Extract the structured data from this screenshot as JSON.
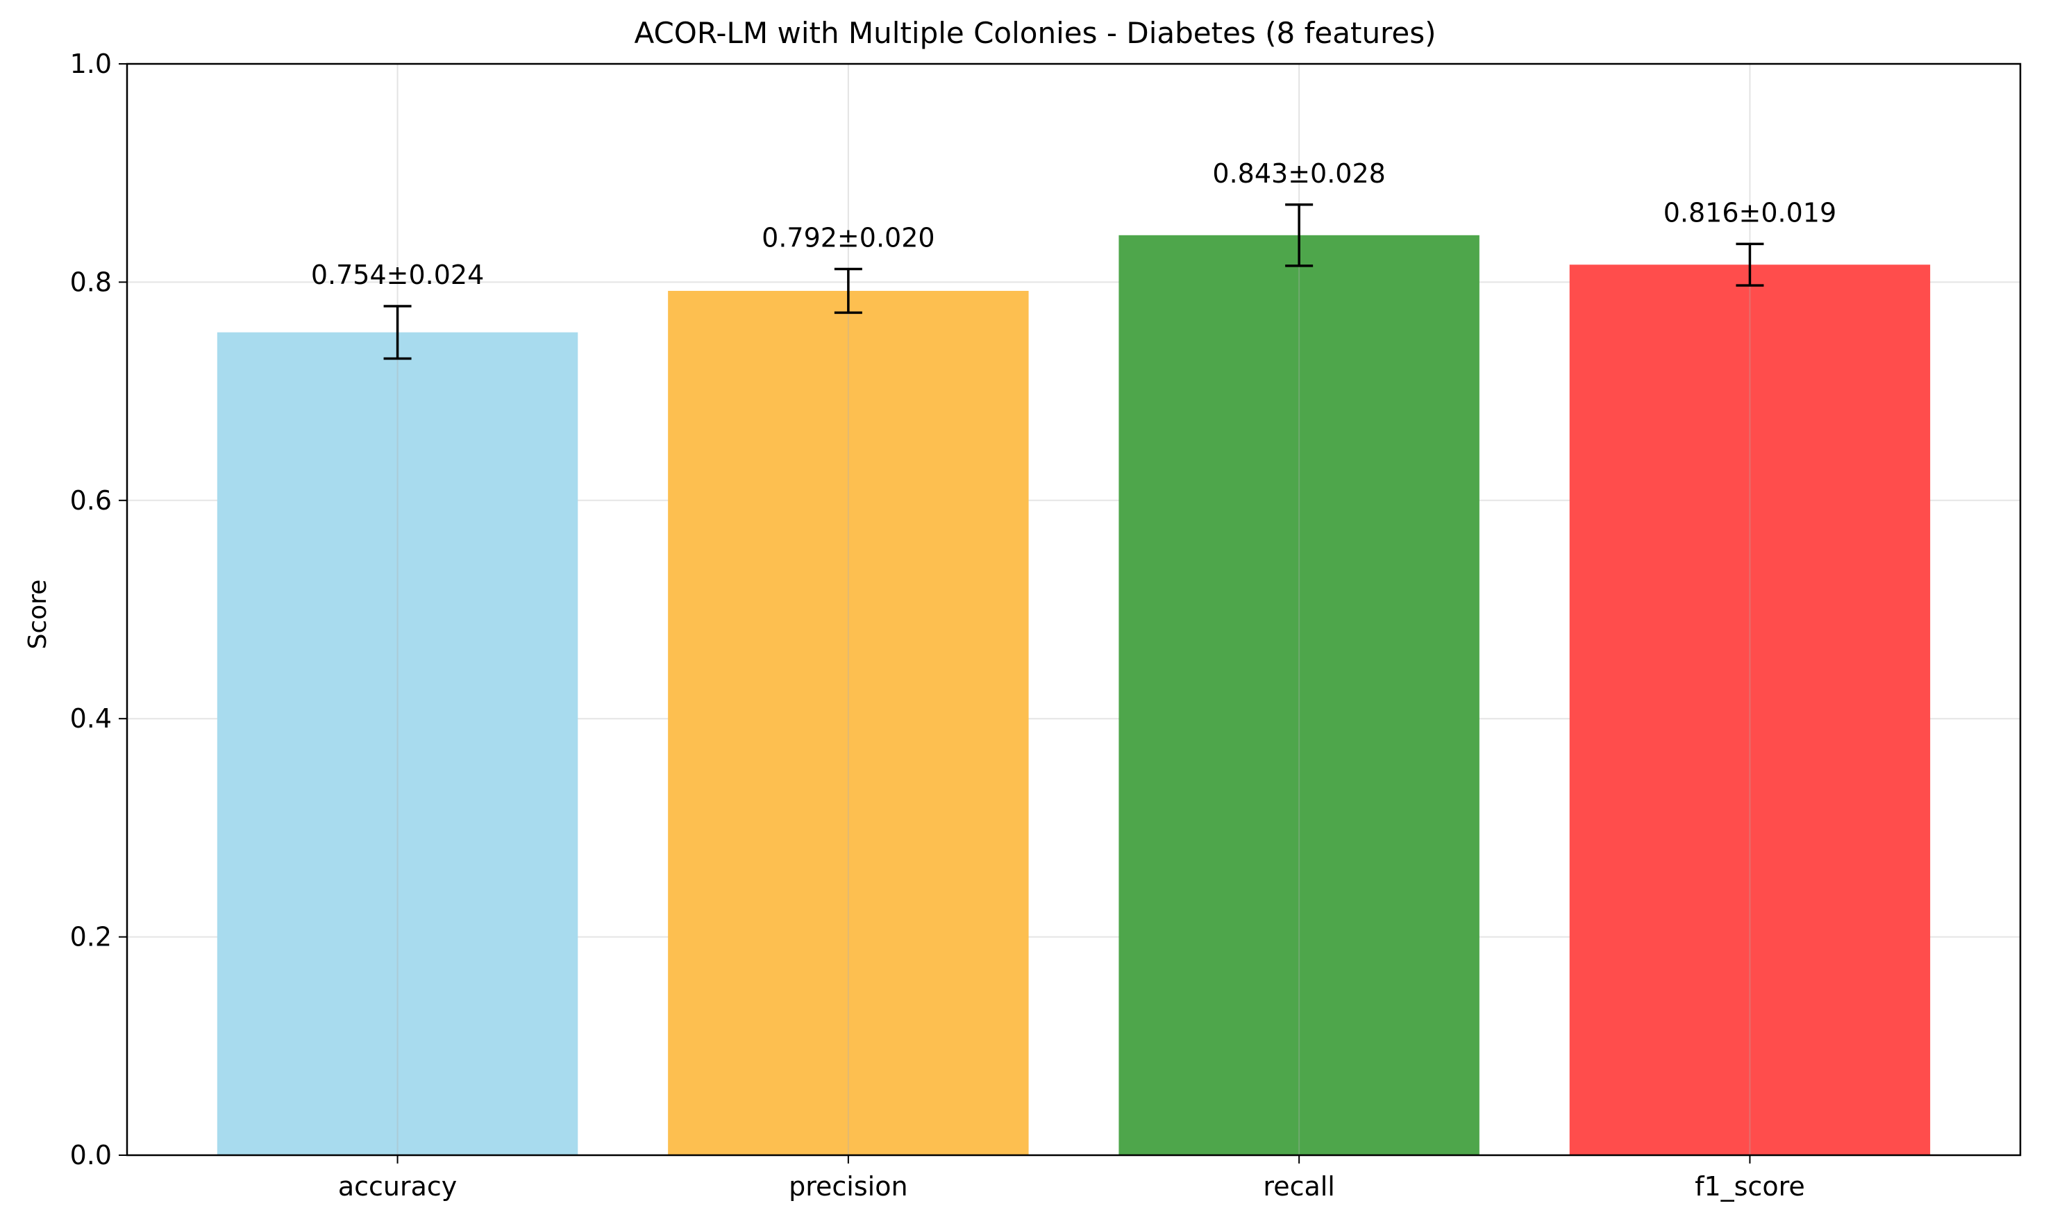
{
  "chart_data": {
    "type": "bar",
    "title": "ACOR-LM with Multiple Colonies - Diabetes (8 features)",
    "xlabel": "",
    "ylabel": "Score",
    "ylim": [
      0,
      1.0
    ],
    "yticks": [
      "0.0",
      "0.2",
      "0.4",
      "0.6",
      "0.8",
      "1.0"
    ],
    "grid": true,
    "categories": [
      "accuracy",
      "precision",
      "recall",
      "f1_score"
    ],
    "values": [
      0.754,
      0.792,
      0.843,
      0.816
    ],
    "errors": [
      0.024,
      0.02,
      0.028,
      0.019
    ],
    "data_labels": [
      "0.754±0.024",
      "0.792±0.020",
      "0.843±0.028",
      "0.816±0.019"
    ],
    "colors": [
      "#a8dbee",
      "#fdbf50",
      "#4ea64b",
      "#ff4d4c"
    ],
    "grid_color": "#e5e5e5",
    "axis_color": "#000000"
  }
}
